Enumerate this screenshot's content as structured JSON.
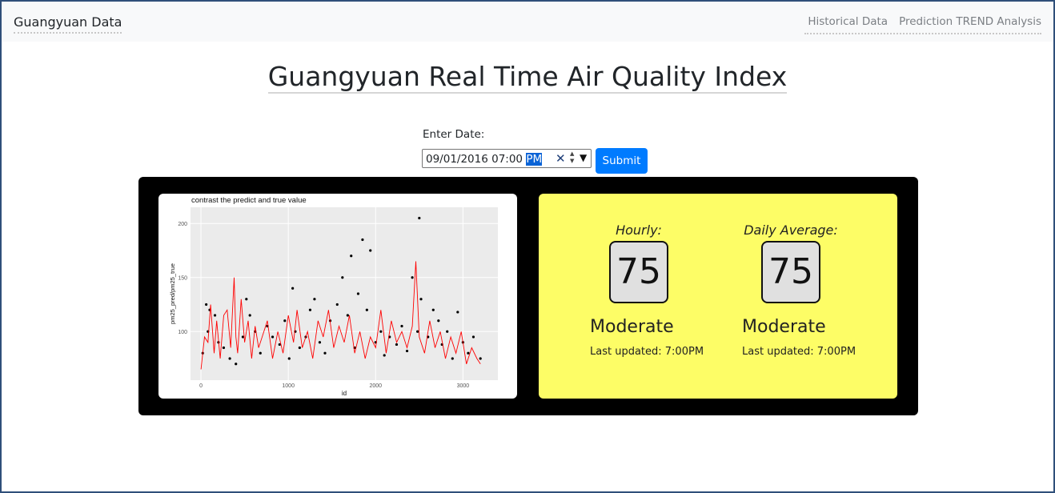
{
  "navbar": {
    "brand": "Guangyuan Data",
    "links": [
      "Historical Data",
      "Prediction TREND Analysis"
    ]
  },
  "page_title": "Guangyuan Real Time Air Quality Index",
  "date_form": {
    "label": "Enter Date:",
    "value_main": "09/01/2016 07:00",
    "value_selected": "PM",
    "submit_label": "Submit"
  },
  "aqi": {
    "hourly": {
      "label": "Hourly:",
      "value": "75",
      "status": "Moderate",
      "updated": "Last updated: 7:00PM"
    },
    "daily": {
      "label": "Daily Average:",
      "value": "75",
      "status": "Moderate",
      "updated": "Last updated: 7:00PM"
    },
    "card_color": "#fdfd66"
  },
  "chart_data": {
    "type": "scatter",
    "title": "contrast the predict and true value",
    "xlabel": "id",
    "ylabel": "pm25_pred/pm25_true",
    "xlim": [
      -120,
      3400
    ],
    "ylim": [
      55,
      215
    ],
    "x_ticks": [
      0,
      1000,
      2000,
      3000
    ],
    "y_ticks": [
      100,
      150,
      200
    ],
    "grid": true,
    "series": [
      {
        "marker": "point",
        "color": "#000000",
        "x": [
          20,
          60,
          80,
          100,
          160,
          200,
          260,
          330,
          400,
          480,
          520,
          560,
          620,
          680,
          760,
          820,
          900,
          960,
          1010,
          1050,
          1080,
          1130,
          1200,
          1250,
          1300,
          1360,
          1420,
          1480,
          1560,
          1620,
          1680,
          1720,
          1760,
          1800,
          1850,
          1900,
          1940,
          2000,
          2060,
          2100,
          2160,
          2240,
          2300,
          2360,
          2420,
          2480,
          2500,
          2520,
          2600,
          2660,
          2720,
          2760,
          2820,
          2880,
          2940,
          3000,
          3060,
          3120,
          3200
        ],
        "y": [
          80,
          125,
          100,
          120,
          115,
          90,
          85,
          75,
          70,
          95,
          130,
          115,
          100,
          80,
          105,
          95,
          88,
          110,
          75,
          140,
          100,
          85,
          95,
          120,
          130,
          90,
          80,
          110,
          125,
          150,
          115,
          170,
          85,
          135,
          185,
          120,
          175,
          90,
          100,
          78,
          95,
          88,
          105,
          82,
          150,
          100,
          205,
          130,
          95,
          120,
          110,
          88,
          100,
          75,
          118,
          90,
          80,
          95,
          75
        ]
      },
      {
        "marker": "line",
        "color": "#ff0000",
        "x": [
          0,
          40,
          80,
          110,
          150,
          180,
          220,
          260,
          300,
          340,
          380,
          400,
          420,
          460,
          500,
          540,
          580,
          620,
          660,
          700,
          760,
          820,
          880,
          940,
          1000,
          1060,
          1100,
          1160,
          1220,
          1280,
          1340,
          1400,
          1460,
          1520,
          1580,
          1640,
          1700,
          1760,
          1820,
          1880,
          1940,
          2000,
          2060,
          2120,
          2180,
          2240,
          2300,
          2360,
          2420,
          2460,
          2500,
          2560,
          2620,
          2680,
          2740,
          2800,
          2860,
          2920,
          2980,
          3040,
          3100,
          3160,
          3200
        ],
        "y": [
          65,
          95,
          90,
          125,
          80,
          110,
          75,
          115,
          120,
          85,
          150,
          95,
          80,
          130,
          90,
          110,
          75,
          105,
          85,
          95,
          110,
          75,
          100,
          80,
          115,
          90,
          120,
          85,
          100,
          75,
          110,
          95,
          120,
          85,
          105,
          90,
          115,
          80,
          100,
          75,
          95,
          85,
          120,
          80,
          110,
          90,
          100,
          85,
          105,
          165,
          95,
          80,
          110,
          85,
          100,
          75,
          95,
          80,
          100,
          70,
          85,
          75,
          70
        ]
      }
    ]
  }
}
